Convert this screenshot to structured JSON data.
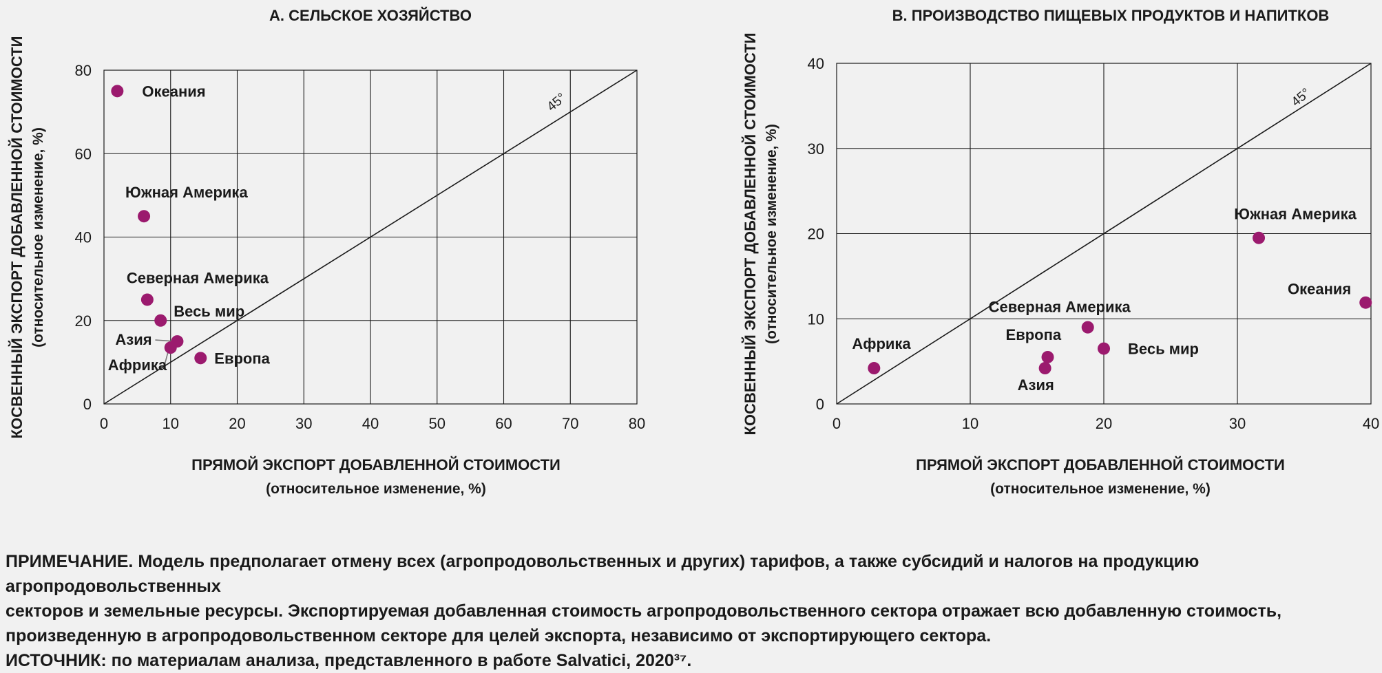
{
  "chart_data": [
    {
      "type": "scatter",
      "title": "A. СЕЛЬСКОЕ ХОЗЯЙСТВО",
      "xlabel": "ПРЯМОЙ ЭКСПОРТ ДОБАВЛЕННОЙ СТОИМОСТИ",
      "xlabel_sub": "(относительное изменение, %)",
      "ylabel": "КОСВЕННЫЙ ЭКСПОРТ ДОБАВЛЕННОЙ СТОИМОСТИ",
      "ylabel_sub": "(относительное изменение, %)",
      "xlim": [
        0,
        80
      ],
      "ylim": [
        0,
        80
      ],
      "xticks": [
        0,
        10,
        20,
        30,
        40,
        50,
        60,
        70,
        80
      ],
      "yticks": [
        0,
        20,
        40,
        60,
        80
      ],
      "grid": true,
      "diagonal_label": "45°",
      "marker_color": "#9b1a6e",
      "points": [
        {
          "label": "Океания",
          "x": 2,
          "y": 75
        },
        {
          "label": "Южная Америка",
          "x": 6,
          "y": 45
        },
        {
          "label": "Северная Америка",
          "x": 6.5,
          "y": 25
        },
        {
          "label": "Весь мир",
          "x": 8.5,
          "y": 20
        },
        {
          "label": "Азия",
          "x": 11,
          "y": 15
        },
        {
          "label": "Африка",
          "x": 10,
          "y": 13.5
        },
        {
          "label": "Европа",
          "x": 14.5,
          "y": 11
        }
      ]
    },
    {
      "type": "scatter",
      "title": "B. ПРОИЗВОДСТВО ПИЩЕВЫХ ПРОДУКТОВ И НАПИТКОВ",
      "xlabel": "ПРЯМОЙ ЭКСПОРТ ДОБАВЛЕННОЙ СТОИМОСТИ",
      "xlabel_sub": "(относительное изменение, %)",
      "ylabel": "КОСВЕННЫЙ ЭКСПОРТ ДОБАВЛЕННОЙ СТОИМОСТИ",
      "ylabel_sub": "(относительное изменение, %)",
      "xlim": [
        0,
        40
      ],
      "ylim": [
        0,
        40
      ],
      "xticks": [
        0,
        10,
        20,
        30,
        40
      ],
      "yticks": [
        0,
        10,
        20,
        30,
        40
      ],
      "grid": true,
      "diagonal_label": "45°",
      "marker_color": "#9b1a6e",
      "points": [
        {
          "label": "Африка",
          "x": 2.8,
          "y": 4.2
        },
        {
          "label": "Европа",
          "x": 15.8,
          "y": 5.5
        },
        {
          "label": "Азия",
          "x": 15.6,
          "y": 4.2
        },
        {
          "label": "Северная Америка",
          "x": 18.8,
          "y": 9
        },
        {
          "label": "Весь мир",
          "x": 20,
          "y": 6.5
        },
        {
          "label": "Южная Америка",
          "x": 31.6,
          "y": 19.5
        },
        {
          "label": "Океания",
          "x": 39.6,
          "y": 11.9
        }
      ]
    }
  ],
  "notes": {
    "line1": "ПРИМЕЧАНИЕ. Модель предполагает отмену всех (агропродовольственных и других) тарифов, а также субсидий и налогов на продукцию агропродовольственных",
    "line2": "секторов и земельные ресурсы. Экспортируемая добавленная стоимость агропродовольственного сектора отражает всю добавленную стоимость,",
    "line3": "произведенную в агропродовольственном секторе для целей экспорта, независимо от экспортирующего сектора.",
    "line4": "ИСТОЧНИК: по материалам анализа, представленного в работе Salvatici, 2020³⁷."
  }
}
